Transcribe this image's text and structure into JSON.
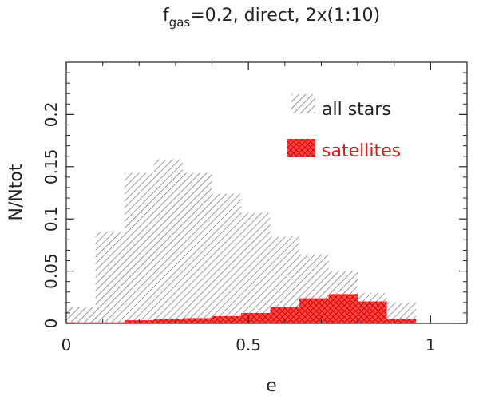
{
  "chart_data": {
    "type": "bar",
    "title": {
      "main": "f",
      "sub": "gas",
      "rest": "=0.2, direct, 2x(1:10)"
    },
    "xlabel": "e",
    "ylabel": "N/Ntot",
    "xlim": [
      0,
      1.1
    ],
    "ylim": [
      0,
      0.25
    ],
    "bin_width": 0.08,
    "x_ticks": [
      {
        "value": 0,
        "label": "0"
      },
      {
        "value": 0.5,
        "label": "0.5"
      },
      {
        "value": 1,
        "label": "1"
      }
    ],
    "y_ticks": [
      {
        "value": 0,
        "label": "0"
      },
      {
        "value": 0.05,
        "label": "0.05"
      },
      {
        "value": 0.1,
        "label": "0.1"
      },
      {
        "value": 0.15,
        "label": "0.15"
      },
      {
        "value": 0.2,
        "label": "0.2"
      }
    ],
    "series": [
      {
        "name": "all stars",
        "color": "#555555",
        "pattern": "diagonal-hatch",
        "bins": [
          {
            "x0": 0.0,
            "value": 0.016
          },
          {
            "x0": 0.08,
            "value": 0.088
          },
          {
            "x0": 0.16,
            "value": 0.144
          },
          {
            "x0": 0.24,
            "value": 0.157
          },
          {
            "x0": 0.32,
            "value": 0.144
          },
          {
            "x0": 0.4,
            "value": 0.124
          },
          {
            "x0": 0.48,
            "value": 0.106
          },
          {
            "x0": 0.56,
            "value": 0.083
          },
          {
            "x0": 0.64,
            "value": 0.066
          },
          {
            "x0": 0.72,
            "value": 0.05
          },
          {
            "x0": 0.8,
            "value": 0.029
          },
          {
            "x0": 0.88,
            "value": 0.02
          }
        ]
      },
      {
        "name": "satellites",
        "color": "#ee1111",
        "pattern": "cross-hatch",
        "bins": [
          {
            "x0": 0.0,
            "value": 0.001
          },
          {
            "x0": 0.08,
            "value": 0.001
          },
          {
            "x0": 0.16,
            "value": 0.003
          },
          {
            "x0": 0.24,
            "value": 0.004
          },
          {
            "x0": 0.32,
            "value": 0.005
          },
          {
            "x0": 0.4,
            "value": 0.007
          },
          {
            "x0": 0.48,
            "value": 0.01
          },
          {
            "x0": 0.56,
            "value": 0.016
          },
          {
            "x0": 0.64,
            "value": 0.024
          },
          {
            "x0": 0.72,
            "value": 0.028
          },
          {
            "x0": 0.8,
            "value": 0.021
          },
          {
            "x0": 0.88,
            "value": 0.004
          }
        ]
      }
    ],
    "legend": {
      "placement": "top-right",
      "items": [
        "all stars",
        "satellites"
      ]
    }
  }
}
